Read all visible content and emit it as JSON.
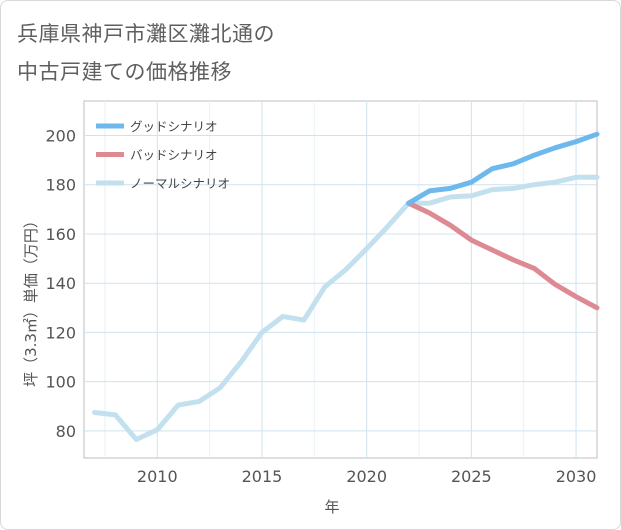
{
  "title": "兵庫県神戸市灘区灘北通の\n中古戸建ての価格推移",
  "chart_data": {
    "type": "line",
    "title": "兵庫県神戸市灘区灘北通の\n中古戸建ての価格推移",
    "xlabel": "年",
    "ylabel": "坪（3.3㎡）単価（万円）",
    "xlim": [
      2006.5,
      2031
    ],
    "ylim": [
      69,
      214
    ],
    "xticks": [
      2010,
      2015,
      2020,
      2025,
      2030
    ],
    "yticks": [
      80,
      100,
      120,
      140,
      160,
      180,
      200
    ],
    "grid": true,
    "legend_position": "top-left",
    "series": [
      {
        "name": "ノーマルシナリオ",
        "color": "#c3e0ee",
        "x": [
          2007,
          2008,
          2009,
          2010,
          2011,
          2012,
          2013,
          2014,
          2015,
          2016,
          2017,
          2018,
          2019,
          2020,
          2021,
          2022,
          2023,
          2024,
          2025,
          2026,
          2027,
          2028,
          2029,
          2030,
          2031
        ],
        "values": [
          87.5,
          86.5,
          76.5,
          80.5,
          90.5,
          92,
          97.5,
          108,
          120,
          126.5,
          125,
          138.5,
          145.5,
          154,
          163,
          172.5,
          172.5,
          175,
          175.5,
          178,
          178.5,
          180,
          181,
          183,
          183
        ]
      },
      {
        "name": "グッドシナリオ",
        "color": "#6db9ee",
        "x": [
          2022,
          2023,
          2024,
          2025,
          2026,
          2027,
          2028,
          2029,
          2030,
          2031
        ],
        "values": [
          172.5,
          177.5,
          178.5,
          181,
          186.5,
          188.5,
          192,
          195,
          197.5,
          200.5
        ]
      },
      {
        "name": "バッドシナリオ",
        "color": "#de8a93",
        "x": [
          2022,
          2023,
          2024,
          2025,
          2026,
          2027,
          2028,
          2029,
          2030,
          2031
        ],
        "values": [
          172.5,
          168.5,
          163.5,
          157.5,
          153.5,
          149.5,
          146,
          139.5,
          134.5,
          130
        ]
      }
    ],
    "legend_order": [
      "グッドシナリオ",
      "バッドシナリオ",
      "ノーマルシナリオ"
    ]
  }
}
